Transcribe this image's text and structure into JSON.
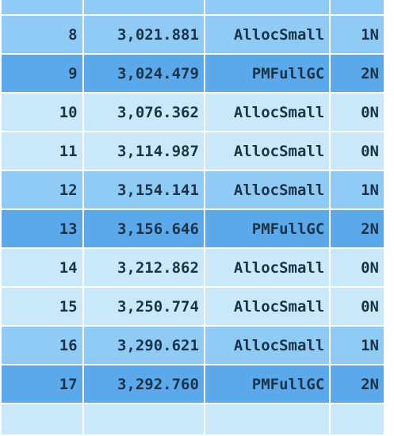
{
  "table": {
    "rows": [
      {
        "index": "8",
        "time": "3,021.881",
        "kind": "AllocSmall",
        "gen": "1N",
        "shade": "mid"
      },
      {
        "index": "9",
        "time": "3,024.479",
        "kind": "PMFullGC",
        "gen": "2N",
        "shade": "dark"
      },
      {
        "index": "10",
        "time": "3,076.362",
        "kind": "AllocSmall",
        "gen": "0N",
        "shade": "light"
      },
      {
        "index": "11",
        "time": "3,114.987",
        "kind": "AllocSmall",
        "gen": "0N",
        "shade": "light"
      },
      {
        "index": "12",
        "time": "3,154.141",
        "kind": "AllocSmall",
        "gen": "1N",
        "shade": "mid"
      },
      {
        "index": "13",
        "time": "3,156.646",
        "kind": "PMFullGC",
        "gen": "2N",
        "shade": "dark"
      },
      {
        "index": "14",
        "time": "3,212.862",
        "kind": "AllocSmall",
        "gen": "0N",
        "shade": "light"
      },
      {
        "index": "15",
        "time": "3,250.774",
        "kind": "AllocSmall",
        "gen": "0N",
        "shade": "light"
      },
      {
        "index": "16",
        "time": "3,290.621",
        "kind": "AllocSmall",
        "gen": "1N",
        "shade": "mid"
      },
      {
        "index": "17",
        "time": "3,292.760",
        "kind": "PMFullGC",
        "gen": "2N",
        "shade": "dark"
      }
    ]
  },
  "colors": {
    "light": "#c9e9fb",
    "mid": "#8fcbf5",
    "dark": "#5ba8ea",
    "text": "#1b3348"
  }
}
